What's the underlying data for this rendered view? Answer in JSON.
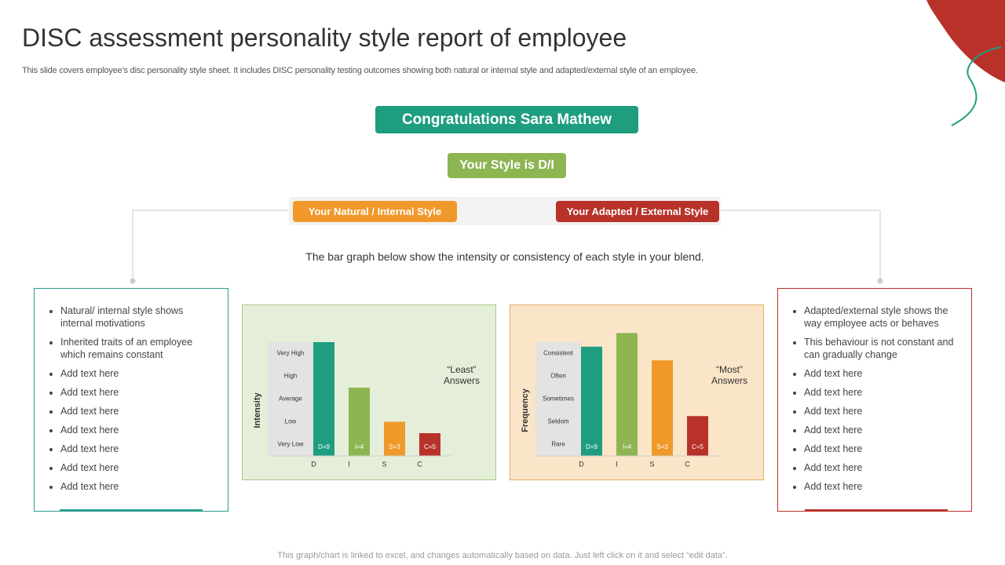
{
  "title": "DISC assessment personality style report of employee",
  "subtitle": "This slide covers employee’s disc personality style sheet. It includes DISC personality testing outcomes showing both natural or internal style and adapted/external style of an employee.",
  "congrats": "Congratulations Sara Mathew",
  "style": "Your Style is D/I",
  "natural_label": "Your Natural / Internal Style",
  "adapted_label": "Your Adapted / External Style",
  "intro": "The bar graph below show the intensity or consistency of each style in your blend.",
  "left_list": [
    "Natural/ internal style shows internal motivations",
    "Inherited traits of an employee which remains constant",
    "Add text here",
    "Add text here",
    "Add text here",
    "Add text here",
    "Add text here",
    "Add text here",
    "Add text here"
  ],
  "right_list": [
    "Adapted/external style shows the way employee acts or behaves",
    "This behaviour  is not constant and can gradually change",
    "Add text here",
    "Add text here",
    "Add text here",
    "Add text here",
    "Add text here",
    "Add text here",
    "Add text here"
  ],
  "footer": "This graph/chart is linked to excel,  and changes automatically based on data. Just left click on it and select “edit data”.",
  "chart_data": [
    {
      "type": "bar",
      "ylabel": "Intensity",
      "annotation": "“Least” Answers",
      "categories": [
        "D",
        "I",
        "S",
        "C"
      ],
      "values": [
        5.0,
        3.0,
        1.5,
        1.0
      ],
      "bar_labels": [
        "D=9",
        "I=4",
        "S=3",
        "C=5"
      ],
      "colors": [
        "#1e9e7e",
        "#8db552",
        "#f0992a",
        "#b83229"
      ],
      "ylim": [
        0,
        5
      ],
      "yticks": [
        {
          "value": 0.5,
          "label": "Very  Low"
        },
        {
          "value": 1.5,
          "label": "Low"
        },
        {
          "value": 2.5,
          "label": "Average"
        },
        {
          "value": 3.5,
          "label": "High"
        },
        {
          "value": 4.5,
          "label": "Very  High"
        }
      ]
    },
    {
      "type": "bar",
      "ylabel": "Frequency",
      "annotation": "“Most” Answers",
      "categories": [
        "D",
        "I",
        "S",
        "C"
      ],
      "values": [
        4.8,
        5.4,
        4.2,
        1.75
      ],
      "bar_labels": [
        "D=9",
        "I=4",
        "S=3",
        "C=5"
      ],
      "colors": [
        "#1e9e7e",
        "#8db552",
        "#f0992a",
        "#b83229"
      ],
      "ylim": [
        0,
        5
      ],
      "yticks": [
        {
          "value": 0.5,
          "label": "Rare"
        },
        {
          "value": 1.5,
          "label": "Seldom"
        },
        {
          "value": 2.5,
          "label": "Sometimes"
        },
        {
          "value": 3.5,
          "label": "Often"
        },
        {
          "value": 4.5,
          "label": "Consistent"
        }
      ]
    }
  ]
}
